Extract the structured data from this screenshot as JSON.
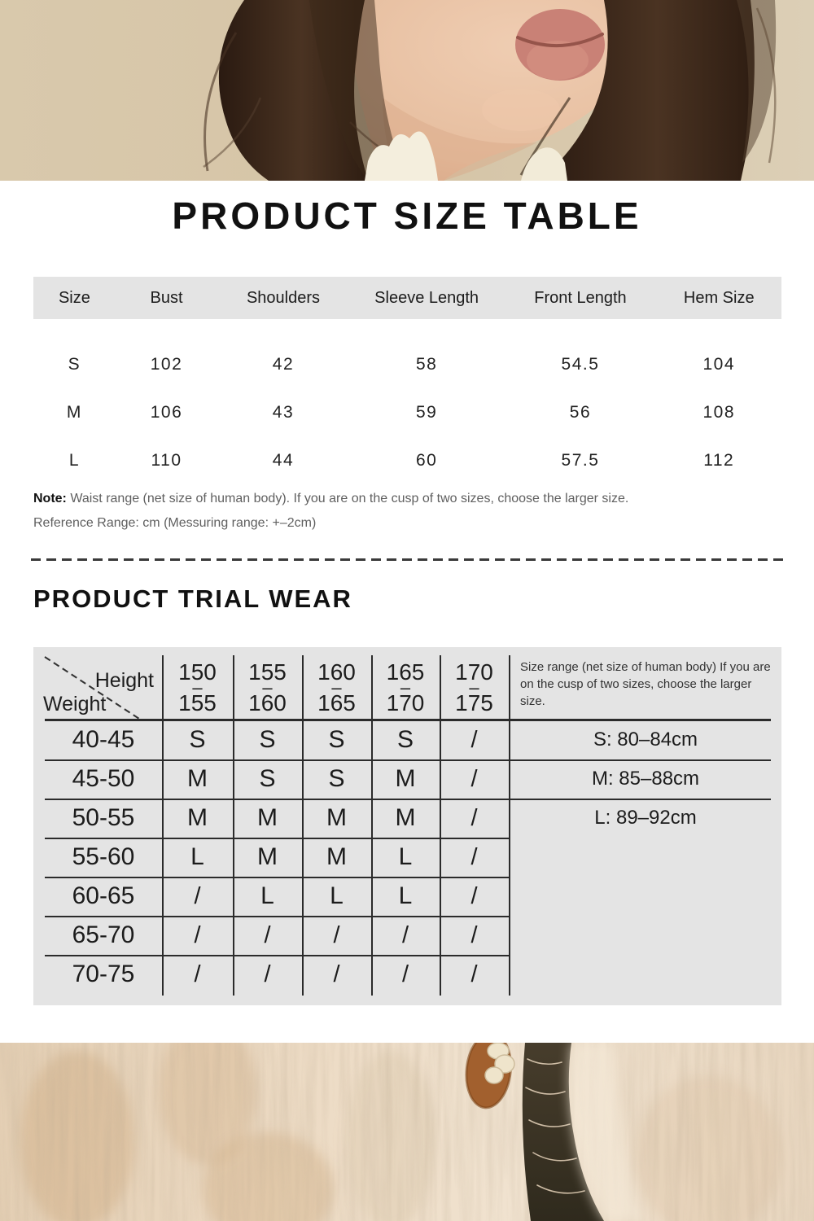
{
  "size_table": {
    "title": "PRODUCT SIZE TABLE",
    "columns": [
      "Size",
      "Bust",
      "Shoulders",
      "Sleeve Length",
      "Front Length",
      "Hem Size"
    ],
    "rows": [
      [
        "S",
        "102",
        "42",
        "58",
        "54.5",
        "104"
      ],
      [
        "M",
        "106",
        "43",
        "59",
        "56",
        "108"
      ],
      [
        "L",
        "110",
        "44",
        "60",
        "57.5",
        "112"
      ]
    ],
    "note_label": "Note:",
    "note_text": " Waist range (net size of human body). If you are on the cusp of two sizes, choose the larger size.",
    "reference_text": "Reference Range: cm (Messuring range: +–2cm)"
  },
  "trial_table": {
    "title": "PRODUCT TRIAL WEAR",
    "corner_top": "Height",
    "corner_bottom": "Weight",
    "range_dash": "–",
    "height_ranges": [
      {
        "from": "150",
        "to": "155"
      },
      {
        "from": "155",
        "to": "160"
      },
      {
        "from": "160",
        "to": "165"
      },
      {
        "from": "165",
        "to": "170"
      },
      {
        "from": "170",
        "to": "175"
      }
    ],
    "note_lines": [
      "Size range (net size of human body) If you are",
      "on the cusp of two sizes, choose the larger",
      "size."
    ],
    "size_ranges": [
      "S: 80–84cm",
      "M: 85–88cm",
      "L: 89–92cm"
    ],
    "rows": [
      {
        "weight": "40-45",
        "cells": [
          "S",
          "S",
          "S",
          "S",
          "/"
        ]
      },
      {
        "weight": "45-50",
        "cells": [
          "M",
          "S",
          "S",
          "M",
          "/"
        ]
      },
      {
        "weight": "50-55",
        "cells": [
          "M",
          "M",
          "M",
          "M",
          "/"
        ]
      },
      {
        "weight": "55-60",
        "cells": [
          "L",
          "M",
          "M",
          "L",
          "/"
        ]
      },
      {
        "weight": "60-65",
        "cells": [
          "/",
          "L",
          "L",
          "L",
          "/"
        ]
      },
      {
        "weight": "65-70",
        "cells": [
          "/",
          "/",
          "/",
          "/",
          "/"
        ]
      },
      {
        "weight": "70-75",
        "cells": [
          "/",
          "/",
          "/",
          "/",
          "/"
        ]
      }
    ]
  },
  "colors": {
    "table_bg": "#e4e4e4",
    "line": "#2b2b2b",
    "heading_text": "#111111",
    "body_text": "#1a1a1a",
    "note_text": "#5f5f5f"
  }
}
